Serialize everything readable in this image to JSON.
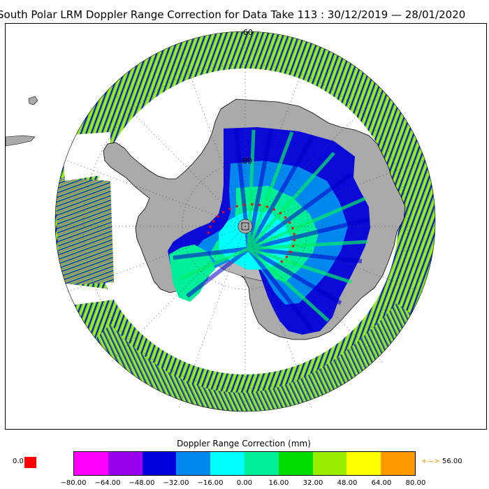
{
  "title": "South Polar LRM Doppler Range Correction for Data Take 113 : 30/12/2019 — 28/01/2020",
  "map": {
    "lat_labels": [
      "-60",
      "-80"
    ],
    "land_color": "#aaaaaa",
    "ice_shelf_color": "#a0a0a0",
    "graticule_color": "#444444"
  },
  "legend": {
    "title": "Doppler Range Correction (mm)",
    "bins": [
      "#ff00ff",
      "#9900ee",
      "#0000dd",
      "#0088ee",
      "#00ffff",
      "#00ee99",
      "#00dd00",
      "#99ee00",
      "#ffff00",
      "#ff9900"
    ],
    "tick_labels": [
      "−80.00",
      "−64.00",
      "−48.00",
      "−32.00",
      "−16.00",
      "0.00",
      "16.00",
      "32.00",
      "48.00",
      "64.00",
      "80.00"
    ],
    "zero_label": "0.0",
    "zero_color": "#ff0000",
    "overflow_arrow": "+—>",
    "overflow_value": "56.00"
  }
}
